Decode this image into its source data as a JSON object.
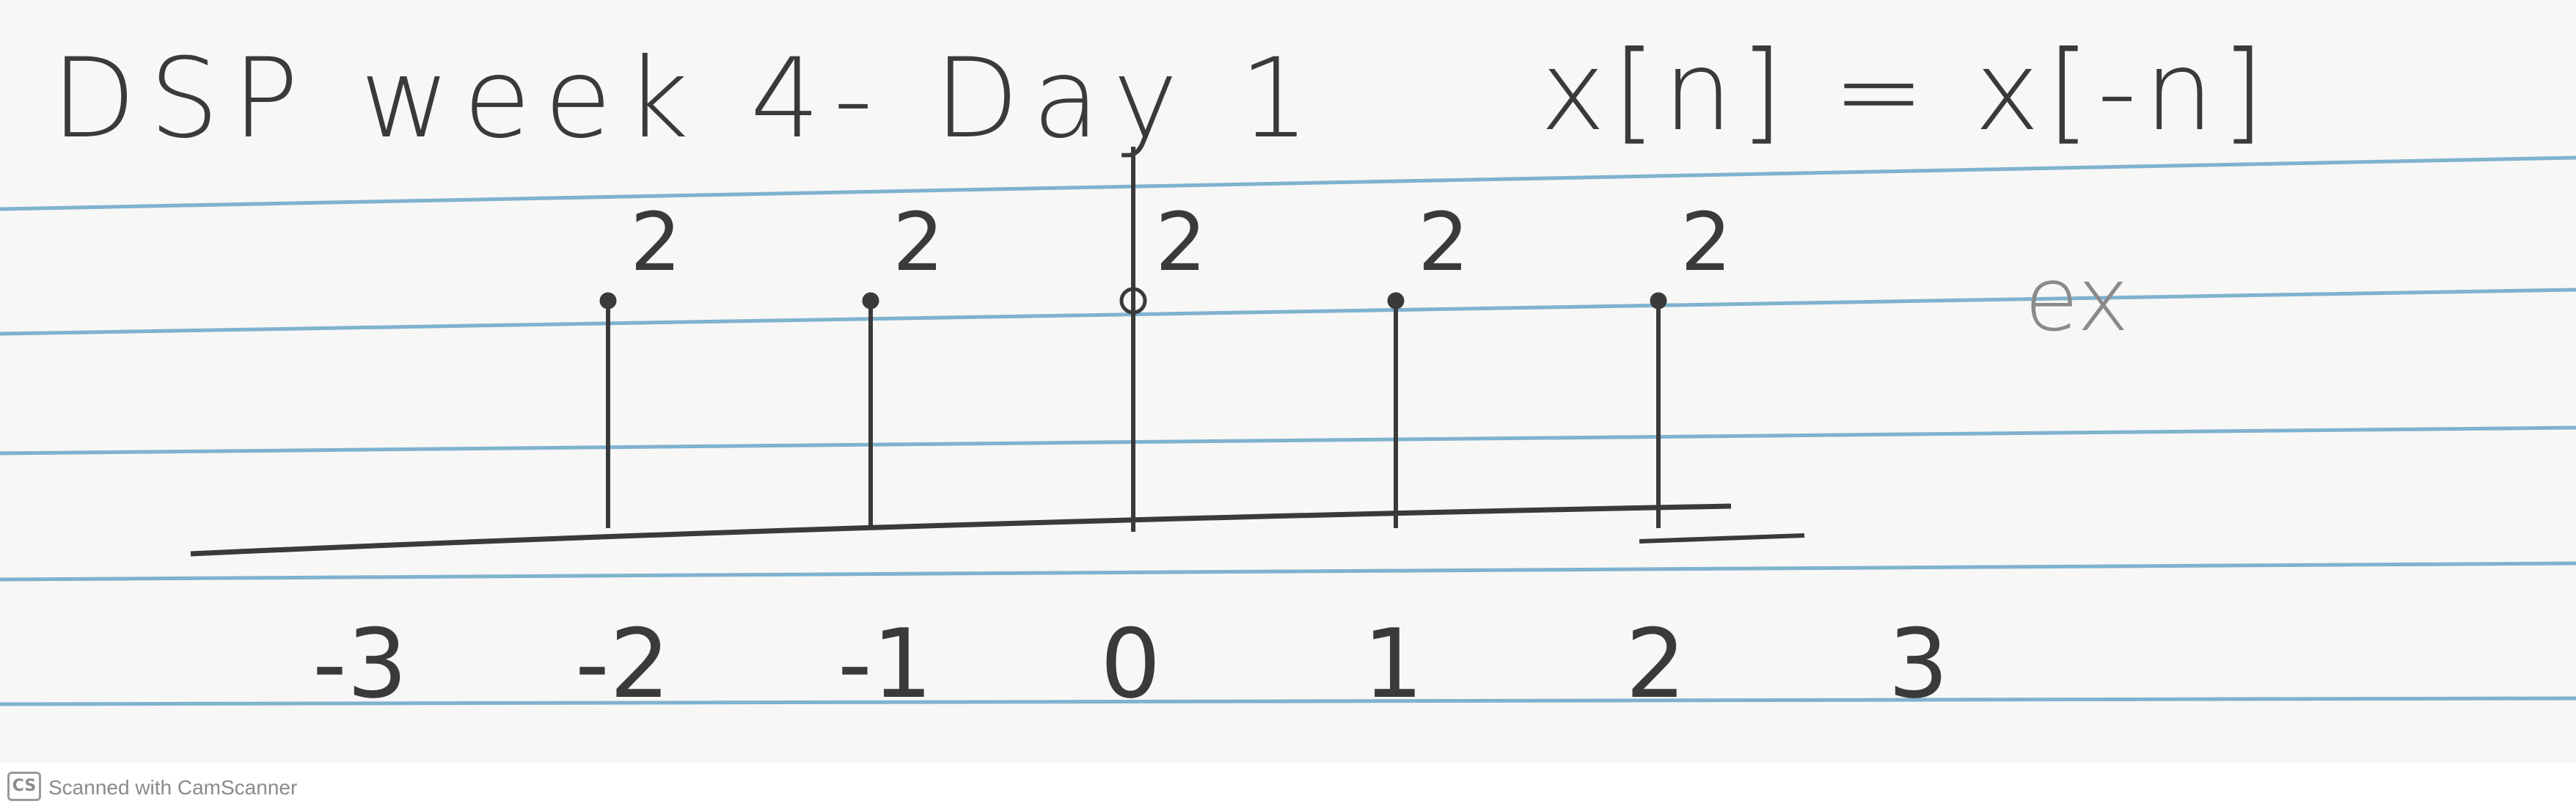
{
  "note": {
    "title": "DSP week 4- Day 1",
    "formula": "x[n] = x[-n]",
    "side_note": "ex"
  },
  "chart_data": {
    "type": "stem",
    "title": "",
    "xlabel": "",
    "ylabel": "",
    "tick_labels": [
      "-3",
      "-2",
      "-1",
      "0",
      "1",
      "2",
      "3"
    ],
    "stem_labels": [
      "2",
      "2",
      "2",
      "2",
      "2"
    ],
    "series": [
      {
        "x": [
          -2,
          -1,
          0,
          1,
          2
        ],
        "y": [
          2,
          2,
          2,
          2,
          2
        ]
      }
    ]
  },
  "footer": {
    "logo": "CS",
    "text": "Scanned with CamScanner"
  },
  "colors": {
    "paper": "#f7f7f5",
    "rule_line": "#7fb2cf",
    "ink": "#3a3a3a"
  }
}
